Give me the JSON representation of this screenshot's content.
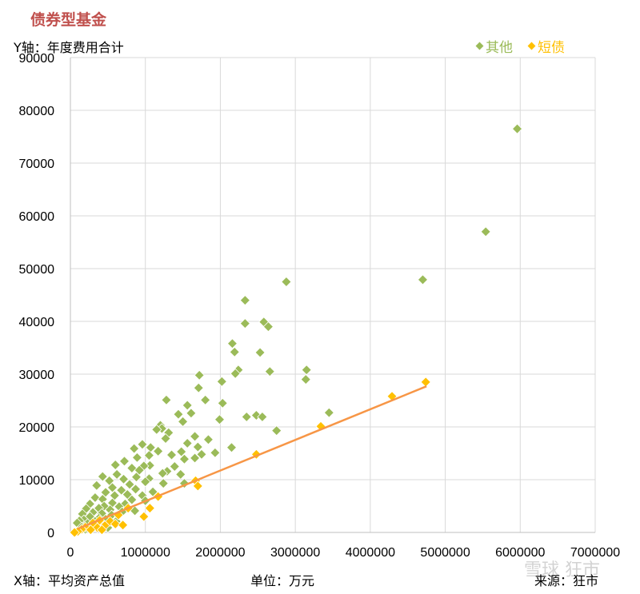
{
  "page_title": "债券型基金",
  "y_axis_label": "Y轴：年度费用合计",
  "x_axis_label": "X轴：平均资产总值",
  "unit_label": "单位：万元",
  "source_label": "来源：狂市",
  "watermark_text": "雪球 狂市",
  "colors": {
    "other": "#9bbb59",
    "short": "#ffc000",
    "trend": "#f79646",
    "title": "#c0504d",
    "grid": "#d9d9d9"
  },
  "chart_data": {
    "type": "scatter",
    "title": "",
    "xlabel": "X轴：平均资产总值",
    "ylabel": "Y轴：年度费用合计",
    "xlim": [
      0,
      7000000
    ],
    "ylim": [
      0,
      90000
    ],
    "x_ticks": [
      "0",
      "1000000",
      "2000000",
      "3000000",
      "4000000",
      "5000000",
      "6000000",
      "7000000"
    ],
    "y_ticks": [
      "0",
      "10000",
      "20000",
      "30000",
      "40000",
      "50000",
      "60000",
      "70000",
      "80000",
      "90000"
    ],
    "grid": true,
    "legend_position": "top-right",
    "series": [
      {
        "name": "其他",
        "marker": "diamond",
        "points": [
          [
            5960000,
            76500
          ],
          [
            5540000,
            57000
          ],
          [
            4700000,
            47900
          ],
          [
            2880000,
            47500
          ],
          [
            2330000,
            44000
          ],
          [
            2580000,
            39900
          ],
          [
            2330000,
            39600
          ],
          [
            2640000,
            39000
          ],
          [
            2160000,
            35800
          ],
          [
            2190000,
            34200
          ],
          [
            2530000,
            34100
          ],
          [
            3150000,
            30800
          ],
          [
            2240000,
            30800
          ],
          [
            2660000,
            30500
          ],
          [
            2200000,
            30100
          ],
          [
            3140000,
            29000
          ],
          [
            1720000,
            29800
          ],
          [
            2020000,
            28600
          ],
          [
            1710000,
            27400
          ],
          [
            1800000,
            25100
          ],
          [
            1280000,
            25100
          ],
          [
            2030000,
            24500
          ],
          [
            1560000,
            24100
          ],
          [
            1610000,
            22600
          ],
          [
            1440000,
            22400
          ],
          [
            2480000,
            22200
          ],
          [
            2350000,
            21900
          ],
          [
            2560000,
            21900
          ],
          [
            3450000,
            22700
          ],
          [
            1990000,
            21400
          ],
          [
            1500000,
            21000
          ],
          [
            1200000,
            20300
          ],
          [
            1220000,
            19700
          ],
          [
            2750000,
            19300
          ],
          [
            1150000,
            19500
          ],
          [
            1310000,
            18900
          ],
          [
            1660000,
            18200
          ],
          [
            1270000,
            17800
          ],
          [
            1840000,
            17600
          ],
          [
            1560000,
            16900
          ],
          [
            960000,
            16700
          ],
          [
            1700000,
            16200
          ],
          [
            1070000,
            16100
          ],
          [
            850000,
            15900
          ],
          [
            2150000,
            16100
          ],
          [
            1170000,
            15400
          ],
          [
            1480000,
            15300
          ],
          [
            1930000,
            15100
          ],
          [
            1750000,
            14800
          ],
          [
            1350000,
            14700
          ],
          [
            1050000,
            14600
          ],
          [
            890000,
            14200
          ],
          [
            1520000,
            13900
          ],
          [
            1660000,
            14100
          ],
          [
            720000,
            13500
          ],
          [
            600000,
            12800
          ],
          [
            1060000,
            12700
          ],
          [
            980000,
            12600
          ],
          [
            1390000,
            12500
          ],
          [
            820000,
            12200
          ],
          [
            920000,
            11800
          ],
          [
            1290000,
            11600
          ],
          [
            1230000,
            11200
          ],
          [
            1470000,
            11000
          ],
          [
            620000,
            11000
          ],
          [
            430000,
            10600
          ],
          [
            880000,
            10500
          ],
          [
            1050000,
            10200
          ],
          [
            710000,
            10100
          ],
          [
            520000,
            9800
          ],
          [
            1000000,
            9600
          ],
          [
            1240000,
            9300
          ],
          [
            1520000,
            9300
          ],
          [
            790000,
            9100
          ],
          [
            350000,
            8900
          ],
          [
            560000,
            8500
          ],
          [
            870000,
            8200
          ],
          [
            680000,
            8000
          ],
          [
            470000,
            7600
          ],
          [
            1100000,
            7700
          ],
          [
            760000,
            7200
          ],
          [
            960000,
            7000
          ],
          [
            590000,
            7000
          ],
          [
            330000,
            6600
          ],
          [
            430000,
            6300
          ],
          [
            820000,
            6200
          ],
          [
            1000000,
            6000
          ],
          [
            560000,
            5600
          ],
          [
            260000,
            5400
          ],
          [
            730000,
            5400
          ],
          [
            450000,
            5000
          ],
          [
            650000,
            4900
          ],
          [
            380000,
            4600
          ],
          [
            210000,
            4500
          ],
          [
            530000,
            4300
          ],
          [
            860000,
            4100
          ],
          [
            690000,
            3900
          ],
          [
            300000,
            3800
          ],
          [
            420000,
            3600
          ],
          [
            160000,
            3500
          ],
          [
            550000,
            3300
          ],
          [
            260000,
            3000
          ],
          [
            380000,
            2700
          ],
          [
            470000,
            2500
          ],
          [
            180000,
            2400
          ],
          [
            330000,
            2100
          ],
          [
            120000,
            2200
          ],
          [
            610000,
            2100
          ],
          [
            230000,
            1700
          ],
          [
            400000,
            1500
          ],
          [
            90000,
            1800
          ],
          [
            300000,
            1200
          ],
          [
            150000,
            1000
          ],
          [
            500000,
            900
          ],
          [
            200000,
            600
          ]
        ]
      },
      {
        "name": "短债",
        "marker": "diamond",
        "points": [
          [
            4740000,
            28500
          ],
          [
            4290000,
            25800
          ],
          [
            3340000,
            20100
          ],
          [
            2480000,
            14800
          ],
          [
            1670000,
            9800
          ],
          [
            1700000,
            8800
          ],
          [
            1170000,
            6800
          ],
          [
            1060000,
            4600
          ],
          [
            770000,
            4600
          ],
          [
            980000,
            3000
          ],
          [
            640000,
            3300
          ],
          [
            390000,
            2300
          ],
          [
            530000,
            2100
          ],
          [
            600000,
            1600
          ],
          [
            300000,
            1800
          ],
          [
            460000,
            1300
          ],
          [
            200000,
            1000
          ],
          [
            360000,
            900
          ],
          [
            700000,
            1400
          ],
          [
            150000,
            600
          ],
          [
            270000,
            500
          ],
          [
            100000,
            200
          ],
          [
            55000,
            0
          ],
          [
            420000,
            500
          ]
        ]
      }
    ],
    "trendline": {
      "series": "短债",
      "from": [
        100000,
        700
      ],
      "to": [
        4750000,
        27700
      ]
    }
  }
}
